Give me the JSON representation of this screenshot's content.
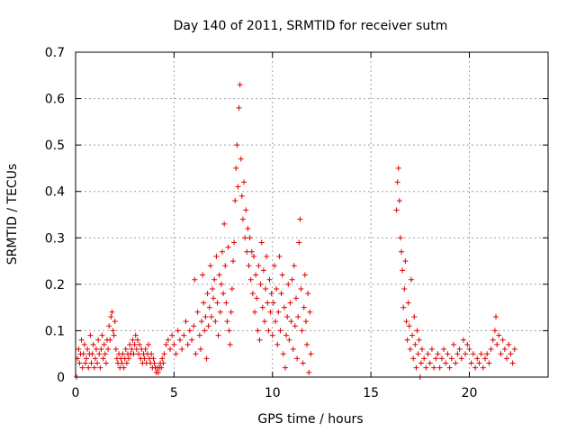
{
  "chart_data": {
    "type": "scatter",
    "title": "Day 140 of 2011, SRMTID for receiver sutm",
    "xlabel": "GPS time / hours",
    "ylabel": "SRMTID / TECUs",
    "xlim": [
      0,
      24
    ],
    "ylim": [
      0,
      0.7
    ],
    "xticks": [
      "0",
      "5",
      "10",
      "15",
      "20"
    ],
    "yticks": [
      "0",
      "0.1",
      "0.2",
      "0.3",
      "0.4",
      "0.5",
      "0.6",
      "0.7"
    ],
    "grid": true,
    "marker": "+",
    "series": [
      {
        "name": "SRMTID",
        "color": "#e00000",
        "points": [
          [
            0.05,
            0.0
          ],
          [
            0.1,
            0.04
          ],
          [
            0.15,
            0.06
          ],
          [
            0.2,
            0.03
          ],
          [
            0.25,
            0.05
          ],
          [
            0.3,
            0.08
          ],
          [
            0.35,
            0.02
          ],
          [
            0.4,
            0.05
          ],
          [
            0.45,
            0.07
          ],
          [
            0.5,
            0.03
          ],
          [
            0.55,
            0.04
          ],
          [
            0.6,
            0.06
          ],
          [
            0.65,
            0.02
          ],
          [
            0.7,
            0.05
          ],
          [
            0.75,
            0.09
          ],
          [
            0.8,
            0.03
          ],
          [
            0.85,
            0.05
          ],
          [
            0.9,
            0.07
          ],
          [
            0.95,
            0.02
          ],
          [
            1.0,
            0.04
          ],
          [
            1.05,
            0.06
          ],
          [
            1.1,
            0.03
          ],
          [
            1.15,
            0.08
          ],
          [
            1.2,
            0.05
          ],
          [
            1.25,
            0.02
          ],
          [
            1.3,
            0.06
          ],
          [
            1.35,
            0.09
          ],
          [
            1.4,
            0.04
          ],
          [
            1.45,
            0.07
          ],
          [
            1.5,
            0.05
          ],
          [
            1.55,
            0.03
          ],
          [
            1.6,
            0.08
          ],
          [
            1.65,
            0.06
          ],
          [
            1.7,
            0.11
          ],
          [
            1.75,
            0.08
          ],
          [
            1.8,
            0.13
          ],
          [
            1.85,
            0.14
          ],
          [
            1.9,
            0.1
          ],
          [
            1.95,
            0.09
          ],
          [
            2.0,
            0.12
          ],
          [
            2.05,
            0.06
          ],
          [
            2.1,
            0.04
          ],
          [
            2.15,
            0.03
          ],
          [
            2.2,
            0.05
          ],
          [
            2.25,
            0.02
          ],
          [
            2.3,
            0.04
          ],
          [
            2.35,
            0.03
          ],
          [
            2.4,
            0.05
          ],
          [
            2.45,
            0.02
          ],
          [
            2.5,
            0.04
          ],
          [
            2.55,
            0.06
          ],
          [
            2.6,
            0.03
          ],
          [
            2.65,
            0.05
          ],
          [
            2.7,
            0.04
          ],
          [
            2.75,
            0.07
          ],
          [
            2.8,
            0.05
          ],
          [
            2.85,
            0.06
          ],
          [
            2.9,
            0.08
          ],
          [
            2.95,
            0.05
          ],
          [
            3.0,
            0.07
          ],
          [
            3.05,
            0.09
          ],
          [
            3.1,
            0.06
          ],
          [
            3.15,
            0.08
          ],
          [
            3.2,
            0.05
          ],
          [
            3.25,
            0.07
          ],
          [
            3.3,
            0.04
          ],
          [
            3.35,
            0.06
          ],
          [
            3.4,
            0.03
          ],
          [
            3.45,
            0.05
          ],
          [
            3.5,
            0.04
          ],
          [
            3.55,
            0.06
          ],
          [
            3.6,
            0.03
          ],
          [
            3.65,
            0.05
          ],
          [
            3.7,
            0.07
          ],
          [
            3.75,
            0.04
          ],
          [
            3.8,
            0.03
          ],
          [
            3.85,
            0.05
          ],
          [
            3.9,
            0.02
          ],
          [
            3.95,
            0.04
          ],
          [
            4.0,
            0.03
          ],
          [
            4.05,
            0.02
          ],
          [
            4.1,
            0.01
          ],
          [
            4.15,
            0.02
          ],
          [
            4.2,
            0.01
          ],
          [
            4.25,
            0.02
          ],
          [
            4.3,
            0.03
          ],
          [
            4.35,
            0.02
          ],
          [
            4.4,
            0.04
          ],
          [
            4.45,
            0.03
          ],
          [
            4.5,
            0.05
          ],
          [
            4.6,
            0.07
          ],
          [
            4.7,
            0.08
          ],
          [
            4.8,
            0.06
          ],
          [
            4.9,
            0.09
          ],
          [
            5.0,
            0.07
          ],
          [
            5.1,
            0.05
          ],
          [
            5.2,
            0.1
          ],
          [
            5.3,
            0.08
          ],
          [
            5.4,
            0.06
          ],
          [
            5.5,
            0.09
          ],
          [
            5.6,
            0.12
          ],
          [
            5.7,
            0.07
          ],
          [
            5.8,
            0.1
          ],
          [
            5.9,
            0.08
          ],
          [
            6.0,
            0.11
          ],
          [
            6.05,
            0.21
          ],
          [
            6.1,
            0.05
          ],
          [
            6.2,
            0.14
          ],
          [
            6.3,
            0.09
          ],
          [
            6.35,
            0.06
          ],
          [
            6.4,
            0.12
          ],
          [
            6.45,
            0.22
          ],
          [
            6.5,
            0.16
          ],
          [
            6.55,
            0.1
          ],
          [
            6.6,
            0.13
          ],
          [
            6.65,
            0.04
          ],
          [
            6.7,
            0.18
          ],
          [
            6.75,
            0.11
          ],
          [
            6.8,
            0.15
          ],
          [
            6.85,
            0.24
          ],
          [
            6.9,
            0.13
          ],
          [
            6.95,
            0.19
          ],
          [
            7.0,
            0.17
          ],
          [
            7.05,
            0.21
          ],
          [
            7.1,
            0.12
          ],
          [
            7.15,
            0.26
          ],
          [
            7.2,
            0.16
          ],
          [
            7.25,
            0.09
          ],
          [
            7.3,
            0.22
          ],
          [
            7.35,
            0.14
          ],
          [
            7.4,
            0.2
          ],
          [
            7.45,
            0.27
          ],
          [
            7.5,
            0.18
          ],
          [
            7.55,
            0.33
          ],
          [
            7.6,
            0.24
          ],
          [
            7.65,
            0.16
          ],
          [
            7.7,
            0.12
          ],
          [
            7.75,
            0.28
          ],
          [
            7.8,
            0.1
          ],
          [
            7.85,
            0.07
          ],
          [
            7.9,
            0.14
          ],
          [
            7.95,
            0.19
          ],
          [
            8.0,
            0.25
          ],
          [
            8.05,
            0.29
          ],
          [
            8.1,
            0.38
          ],
          [
            8.15,
            0.45
          ],
          [
            8.2,
            0.5
          ],
          [
            8.25,
            0.41
          ],
          [
            8.3,
            0.58
          ],
          [
            8.35,
            0.63
          ],
          [
            8.4,
            0.47
          ],
          [
            8.45,
            0.39
          ],
          [
            8.5,
            0.34
          ],
          [
            8.55,
            0.42
          ],
          [
            8.6,
            0.3
          ],
          [
            8.65,
            0.36
          ],
          [
            8.7,
            0.27
          ],
          [
            8.75,
            0.32
          ],
          [
            8.8,
            0.24
          ],
          [
            8.85,
            0.3
          ],
          [
            8.9,
            0.21
          ],
          [
            8.95,
            0.27
          ],
          [
            9.0,
            0.18
          ],
          [
            9.05,
            0.26
          ],
          [
            9.1,
            0.14
          ],
          [
            9.15,
            0.22
          ],
          [
            9.2,
            0.17
          ],
          [
            9.25,
            0.1
          ],
          [
            9.3,
            0.24
          ],
          [
            9.35,
            0.08
          ],
          [
            9.4,
            0.2
          ],
          [
            9.45,
            0.29
          ],
          [
            9.5,
            0.15
          ],
          [
            9.55,
            0.23
          ],
          [
            9.6,
            0.12
          ],
          [
            9.65,
            0.19
          ],
          [
            9.7,
            0.26
          ],
          [
            9.75,
            0.16
          ],
          [
            9.8,
            0.1
          ],
          [
            9.85,
            0.21
          ],
          [
            9.9,
            0.14
          ],
          [
            9.95,
            0.18
          ],
          [
            10.0,
            0.09
          ],
          [
            10.05,
            0.16
          ],
          [
            10.1,
            0.24
          ],
          [
            10.15,
            0.12
          ],
          [
            10.2,
            0.19
          ],
          [
            10.25,
            0.07
          ],
          [
            10.3,
            0.14
          ],
          [
            10.35,
            0.26
          ],
          [
            10.4,
            0.1
          ],
          [
            10.45,
            0.18
          ],
          [
            10.5,
            0.22
          ],
          [
            10.55,
            0.05
          ],
          [
            10.6,
            0.15
          ],
          [
            10.65,
            0.02
          ],
          [
            10.7,
            0.09
          ],
          [
            10.75,
            0.13
          ],
          [
            10.8,
            0.2
          ],
          [
            10.85,
            0.08
          ],
          [
            10.9,
            0.16
          ],
          [
            10.95,
            0.12
          ],
          [
            11.0,
            0.21
          ],
          [
            11.05,
            0.06
          ],
          [
            11.1,
            0.24
          ],
          [
            11.15,
            0.11
          ],
          [
            11.2,
            0.17
          ],
          [
            11.25,
            0.04
          ],
          [
            11.3,
            0.13
          ],
          [
            11.35,
            0.29
          ],
          [
            11.4,
            0.34
          ],
          [
            11.45,
            0.19
          ],
          [
            11.5,
            0.1
          ],
          [
            11.55,
            0.03
          ],
          [
            11.6,
            0.15
          ],
          [
            11.65,
            0.22
          ],
          [
            11.7,
            0.12
          ],
          [
            11.75,
            0.07
          ],
          [
            11.8,
            0.18
          ],
          [
            11.85,
            0.01
          ],
          [
            11.9,
            0.14
          ],
          [
            11.95,
            0.05
          ],
          [
            16.3,
            0.36
          ],
          [
            16.35,
            0.42
          ],
          [
            16.4,
            0.45
          ],
          [
            16.45,
            0.38
          ],
          [
            16.5,
            0.3
          ],
          [
            16.55,
            0.27
          ],
          [
            16.6,
            0.23
          ],
          [
            16.65,
            0.15
          ],
          [
            16.7,
            0.19
          ],
          [
            16.75,
            0.25
          ],
          [
            16.8,
            0.12
          ],
          [
            16.85,
            0.08
          ],
          [
            16.9,
            0.16
          ],
          [
            16.95,
            0.11
          ],
          [
            17.0,
            0.06
          ],
          [
            17.05,
            0.21
          ],
          [
            17.1,
            0.09
          ],
          [
            17.15,
            0.04
          ],
          [
            17.2,
            0.13
          ],
          [
            17.25,
            0.07
          ],
          [
            17.3,
            0.02
          ],
          [
            17.35,
            0.1
          ],
          [
            17.4,
            0.05
          ],
          [
            17.45,
            0.08
          ],
          [
            17.5,
            0.0
          ],
          [
            17.55,
            0.03
          ],
          [
            17.6,
            0.06
          ],
          [
            17.7,
            0.04
          ],
          [
            17.8,
            0.02
          ],
          [
            17.9,
            0.05
          ],
          [
            18.0,
            0.03
          ],
          [
            18.1,
            0.06
          ],
          [
            18.2,
            0.02
          ],
          [
            18.3,
            0.04
          ],
          [
            18.4,
            0.05
          ],
          [
            18.5,
            0.02
          ],
          [
            18.6,
            0.04
          ],
          [
            18.7,
            0.06
          ],
          [
            18.8,
            0.03
          ],
          [
            18.9,
            0.05
          ],
          [
            19.0,
            0.02
          ],
          [
            19.1,
            0.04
          ],
          [
            19.2,
            0.07
          ],
          [
            19.3,
            0.03
          ],
          [
            19.4,
            0.05
          ],
          [
            19.5,
            0.06
          ],
          [
            19.6,
            0.04
          ],
          [
            19.7,
            0.08
          ],
          [
            19.8,
            0.05
          ],
          [
            19.9,
            0.07
          ],
          [
            20.0,
            0.06
          ],
          [
            20.1,
            0.03
          ],
          [
            20.2,
            0.05
          ],
          [
            20.3,
            0.02
          ],
          [
            20.4,
            0.04
          ],
          [
            20.5,
            0.03
          ],
          [
            20.6,
            0.05
          ],
          [
            20.7,
            0.02
          ],
          [
            20.8,
            0.04
          ],
          [
            20.9,
            0.05
          ],
          [
            21.0,
            0.03
          ],
          [
            21.1,
            0.06
          ],
          [
            21.2,
            0.08
          ],
          [
            21.3,
            0.1
          ],
          [
            21.35,
            0.13
          ],
          [
            21.4,
            0.07
          ],
          [
            21.5,
            0.09
          ],
          [
            21.6,
            0.05
          ],
          [
            21.7,
            0.08
          ],
          [
            21.8,
            0.06
          ],
          [
            21.9,
            0.04
          ],
          [
            22.0,
            0.07
          ],
          [
            22.1,
            0.05
          ],
          [
            22.2,
            0.03
          ],
          [
            22.3,
            0.06
          ]
        ]
      }
    ]
  }
}
